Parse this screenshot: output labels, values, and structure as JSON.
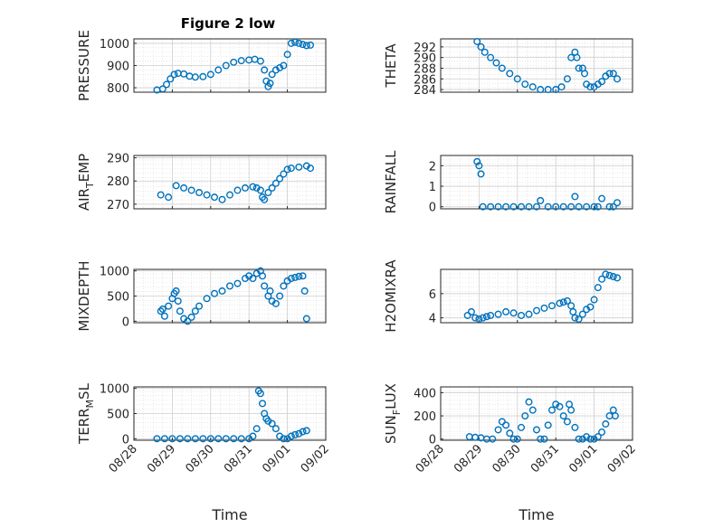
{
  "figure": {
    "title": "Figure 2 low",
    "marker_color": "#0072BD",
    "axis_color": "#262626",
    "grid": true,
    "minor_grid": true
  },
  "chart_data": [
    {
      "type": "scatter",
      "id": "pressure",
      "ylabel": "PRESSURE",
      "xlabel": "",
      "xlim": [
        "08/28",
        "09/02"
      ],
      "ylim": [
        780,
        1020
      ],
      "yticks": [
        800,
        900,
        1000
      ],
      "x": [
        0.6,
        0.75,
        0.85,
        0.95,
        1.05,
        1.15,
        1.3,
        1.45,
        1.6,
        1.8,
        2.0,
        2.2,
        2.4,
        2.6,
        2.8,
        3.0,
        3.15,
        3.3,
        3.4,
        3.45,
        3.5,
        3.55,
        3.6,
        3.7,
        3.8,
        3.9,
        4.0,
        4.1,
        4.2,
        4.3,
        4.4,
        4.5,
        4.6
      ],
      "y": [
        790,
        795,
        815,
        840,
        860,
        865,
        862,
        852,
        848,
        850,
        860,
        880,
        900,
        915,
        922,
        925,
        928,
        920,
        880,
        830,
        805,
        820,
        860,
        880,
        890,
        900,
        950,
        1000,
        1005,
        1000,
        995,
        990,
        992
      ]
    },
    {
      "type": "scatter",
      "id": "theta",
      "ylabel": "THETA",
      "xlabel": "",
      "xlim": [
        "08/28",
        "09/02"
      ],
      "ylim": [
        283.5,
        293.5
      ],
      "yticks": [
        284,
        286,
        288,
        290,
        292
      ],
      "x": [
        0.95,
        1.05,
        1.15,
        1.3,
        1.45,
        1.6,
        1.8,
        2.0,
        2.2,
        2.4,
        2.6,
        2.8,
        3.0,
        3.15,
        3.3,
        3.4,
        3.5,
        3.55,
        3.6,
        3.7,
        3.75,
        3.8,
        3.9,
        4.0,
        4.1,
        4.2,
        4.3,
        4.4,
        4.5,
        4.6
      ],
      "y": [
        293,
        292,
        291,
        290,
        289,
        288,
        287,
        286,
        285,
        284.5,
        284,
        284,
        284,
        284.5,
        286,
        290,
        291,
        290,
        288,
        288,
        287,
        285,
        284.5,
        284.5,
        285,
        285.5,
        286.5,
        287,
        287,
        286
      ]
    },
    {
      "type": "scatter",
      "id": "air_temp",
      "ylabel": "AIR",
      "ylabel_sub": "T",
      "ylabel_tail": "EMP",
      "xlabel": "",
      "xlim": [
        "08/28",
        "09/02"
      ],
      "ylim": [
        268,
        291
      ],
      "yticks": [
        270,
        280,
        290
      ],
      "x": [
        0.7,
        0.9,
        1.1,
        1.3,
        1.5,
        1.7,
        1.9,
        2.1,
        2.3,
        2.5,
        2.7,
        2.9,
        3.1,
        3.2,
        3.3,
        3.35,
        3.4,
        3.5,
        3.6,
        3.7,
        3.8,
        3.9,
        4.0,
        4.1,
        4.3,
        4.5,
        4.6
      ],
      "y": [
        274,
        273,
        278,
        277,
        276,
        275,
        274,
        273,
        272,
        274,
        276,
        277,
        277.5,
        277,
        276,
        273,
        272,
        275,
        277,
        279,
        281,
        283,
        285,
        285.5,
        286,
        286.5,
        285.5
      ]
    },
    {
      "type": "scatter",
      "id": "rainfall",
      "ylabel": "RAINFALL",
      "xlabel": "",
      "xlim": [
        "08/28",
        "09/02"
      ],
      "ylim": [
        -0.1,
        2.5
      ],
      "yticks": [
        0,
        1,
        2
      ],
      "x": [
        0.95,
        1.0,
        1.05,
        1.1,
        1.3,
        1.5,
        1.7,
        1.9,
        2.1,
        2.3,
        2.5,
        2.6,
        2.8,
        3.0,
        3.2,
        3.4,
        3.5,
        3.6,
        3.8,
        4.0,
        4.1,
        4.2,
        4.4,
        4.5,
        4.6
      ],
      "y": [
        2.2,
        2.0,
        1.6,
        0,
        0,
        0,
        0,
        0,
        0,
        0,
        0,
        0.3,
        0,
        0,
        0,
        0,
        0.5,
        0,
        0,
        0,
        0,
        0.4,
        0,
        0,
        0.2
      ]
    },
    {
      "type": "scatter",
      "id": "mixdepth",
      "ylabel": "MIXDEPTH",
      "xlabel": "",
      "xlim": [
        "08/28",
        "09/02"
      ],
      "ylim": [
        -30,
        1030
      ],
      "yticks": [
        0,
        500,
        1000
      ],
      "x": [
        0.7,
        0.75,
        0.8,
        0.9,
        1.0,
        1.05,
        1.1,
        1.15,
        1.2,
        1.3,
        1.4,
        1.5,
        1.6,
        1.7,
        1.9,
        2.1,
        2.3,
        2.5,
        2.7,
        2.9,
        3.0,
        3.1,
        3.2,
        3.3,
        3.35,
        3.4,
        3.5,
        3.55,
        3.6,
        3.7,
        3.8,
        3.9,
        4.0,
        4.1,
        4.2,
        4.3,
        4.4,
        4.45,
        4.5
      ],
      "y": [
        200,
        240,
        100,
        300,
        450,
        550,
        600,
        400,
        200,
        50,
        0,
        80,
        200,
        300,
        450,
        550,
        600,
        700,
        750,
        850,
        900,
        850,
        950,
        1000,
        900,
        700,
        500,
        600,
        400,
        350,
        500,
        700,
        800,
        850,
        870,
        890,
        900,
        600,
        50
      ]
    },
    {
      "type": "scatter",
      "id": "h2omixra",
      "ylabel": "H2OMIXRA",
      "xlabel": "",
      "xlim": [
        "08/28",
        "09/02"
      ],
      "ylim": [
        3.6,
        8.0
      ],
      "yticks": [
        4,
        6
      ],
      "x": [
        0.7,
        0.8,
        0.9,
        1.0,
        1.1,
        1.2,
        1.3,
        1.5,
        1.7,
        1.9,
        2.1,
        2.3,
        2.5,
        2.7,
        2.9,
        3.1,
        3.2,
        3.3,
        3.4,
        3.45,
        3.5,
        3.6,
        3.7,
        3.8,
        3.9,
        4.0,
        4.1,
        4.2,
        4.3,
        4.4,
        4.5,
        4.6
      ],
      "y": [
        4.2,
        4.5,
        4.0,
        3.9,
        4.0,
        4.1,
        4.2,
        4.3,
        4.5,
        4.4,
        4.2,
        4.3,
        4.6,
        4.8,
        5.0,
        5.2,
        5.3,
        5.4,
        5.0,
        4.5,
        4.0,
        3.9,
        4.3,
        4.7,
        4.9,
        5.5,
        6.5,
        7.2,
        7.6,
        7.5,
        7.4,
        7.3
      ]
    },
    {
      "type": "scatter",
      "id": "terr_msl",
      "ylabel": "TERR",
      "ylabel_sub": "M",
      "ylabel_tail": "SL",
      "xlabel": "Time",
      "xlim": [
        "08/28",
        "09/02"
      ],
      "ylim": [
        -30,
        1030
      ],
      "yticks": [
        0,
        500,
        1000
      ],
      "x": [
        0.6,
        0.8,
        1.0,
        1.2,
        1.4,
        1.6,
        1.8,
        2.0,
        2.2,
        2.4,
        2.6,
        2.8,
        3.0,
        3.1,
        3.2,
        3.25,
        3.3,
        3.35,
        3.4,
        3.45,
        3.5,
        3.6,
        3.7,
        3.8,
        3.9,
        4.0,
        4.1,
        4.2,
        4.3,
        4.4,
        4.5
      ],
      "y": [
        0,
        0,
        0,
        0,
        0,
        0,
        0,
        0,
        0,
        0,
        0,
        0,
        0,
        50,
        200,
        950,
        900,
        700,
        500,
        400,
        350,
        300,
        200,
        50,
        0,
        0,
        50,
        80,
        100,
        140,
        160
      ]
    },
    {
      "type": "scatter",
      "id": "sun_flux",
      "ylabel": "SUN",
      "ylabel_sub": "F",
      "ylabel_tail": "LUX",
      "xlabel": "Time",
      "xlim": [
        "08/28",
        "09/02"
      ],
      "ylim": [
        -10,
        450
      ],
      "yticks": [
        0,
        200,
        400
      ],
      "x": [
        0.75,
        0.9,
        1.05,
        1.2,
        1.35,
        1.5,
        1.6,
        1.7,
        1.8,
        1.9,
        2.0,
        2.1,
        2.2,
        2.3,
        2.4,
        2.5,
        2.6,
        2.7,
        2.8,
        2.9,
        3.0,
        3.1,
        3.2,
        3.3,
        3.35,
        3.4,
        3.5,
        3.6,
        3.7,
        3.8,
        3.9,
        4.0,
        4.1,
        4.2,
        4.3,
        4.4,
        4.5,
        4.55
      ],
      "y": [
        20,
        15,
        10,
        0,
        0,
        80,
        150,
        120,
        50,
        0,
        0,
        100,
        200,
        320,
        250,
        80,
        0,
        0,
        120,
        250,
        300,
        280,
        200,
        150,
        300,
        250,
        100,
        0,
        0,
        20,
        0,
        0,
        20,
        60,
        130,
        200,
        250,
        200
      ]
    }
  ],
  "xticks": [
    "08/28",
    "08/29",
    "08/30",
    "08/31",
    "09/01",
    "09/02"
  ]
}
